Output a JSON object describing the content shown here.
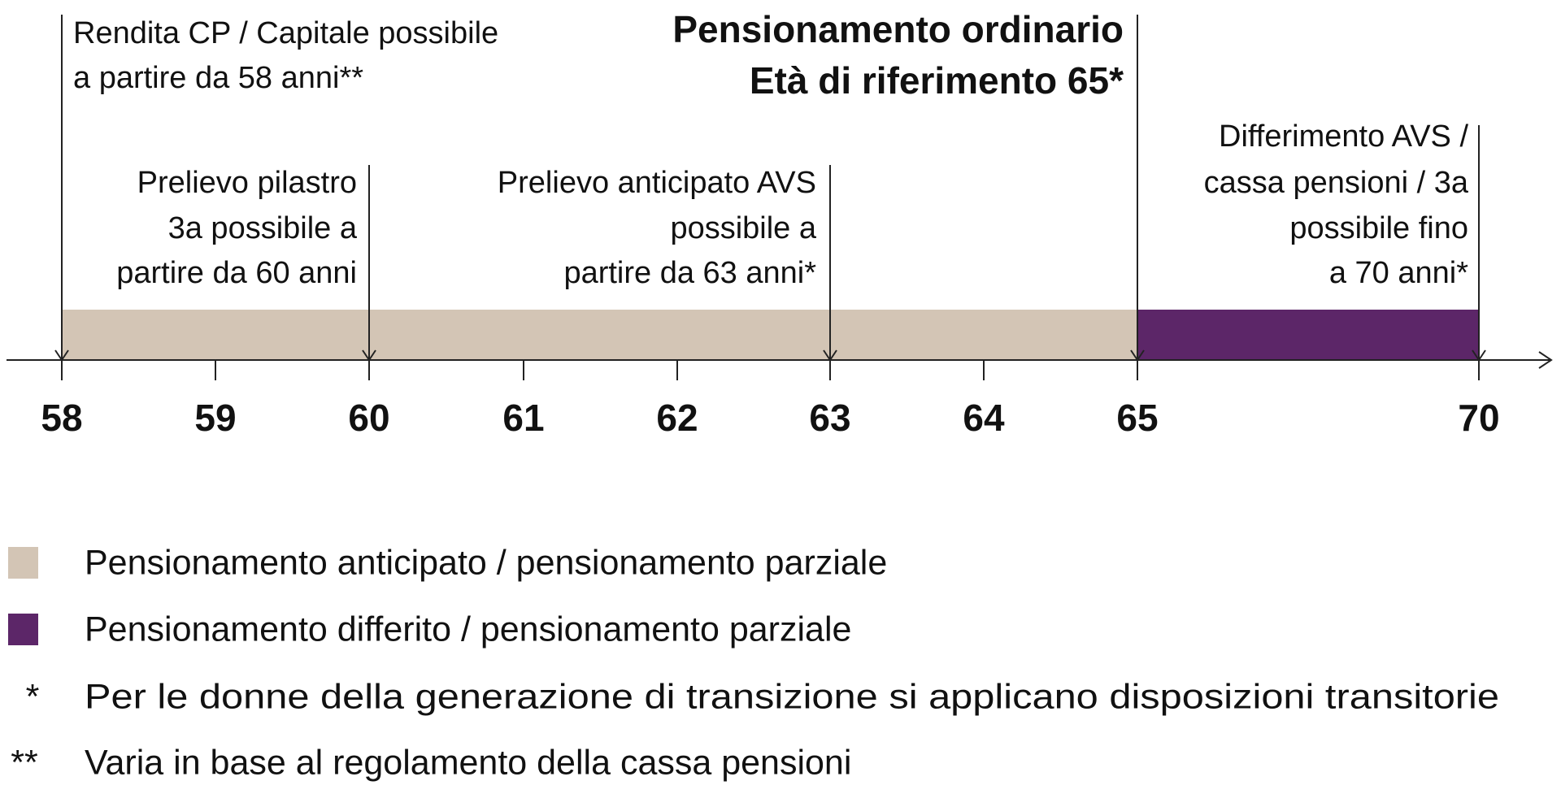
{
  "title": [
    "Pensionamento ordinario",
    "Età di riferimento 65*"
  ],
  "annotations": [
    {
      "lines": [
        "Rendita CP / Capitale possibile",
        "a partire da 58 anni**"
      ]
    },
    {
      "lines": [
        "Prelievo pilastro",
        "3a possibile a",
        "partire da 60 anni"
      ]
    },
    {
      "lines": [
        "Prelievo anticipato AVS",
        "possibile a",
        "partire da 63 anni*"
      ]
    },
    {
      "lines": [
        "Differimento AVS /",
        "cassa pensioni / 3a",
        "possibile fino",
        "a 70 anni*"
      ]
    }
  ],
  "axis": {
    "ticks": [
      "58",
      "59",
      "60",
      "61",
      "62",
      "63",
      "64",
      "65",
      "70"
    ]
  },
  "legend": [
    {
      "label": "Pensionamento anticipato / pensionamento parziale",
      "color": "#d3c5b5"
    },
    {
      "label": "Pensionamento differito / pensionamento parziale",
      "color": "#5c2668"
    }
  ],
  "notes": [
    {
      "symbol": "*",
      "text": "Per le donne della generazione di transizione si applicano disposizioni transitorie"
    },
    {
      "symbol": "**",
      "text": "Varia in base al regolamento della cassa pensioni"
    }
  ]
}
